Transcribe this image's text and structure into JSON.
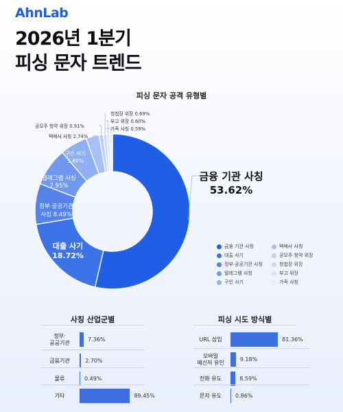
{
  "brand": "AhnLab",
  "title_line1": "2026년 1분기",
  "title_line2": "피싱 문자 트렌드",
  "colors": {
    "title": "#0d0d12",
    "accent": "#1e5fd8",
    "bar": "#3d6fe0"
  },
  "chart_data": [
    {
      "type": "pie",
      "title": "피싱 문자 공격 유형별",
      "categories": [
        "금융 기관 사칭",
        "대출 사기",
        "정부·공공기관 사칭",
        "텔레그램 사칭",
        "구인 사기",
        "택배사 사칭",
        "공모주 청약 위장",
        "청첩장 위장",
        "부고 위장",
        "가족 사칭"
      ],
      "values": [
        53.62,
        18.72,
        8.49,
        7.95,
        5.69,
        2.74,
        0.91,
        0.69,
        0.6,
        0.59
      ],
      "value_labels": [
        "53.62%",
        "18.72%",
        "8.49%",
        "7.95%",
        "5.69%",
        "2.74%",
        "0.91%",
        "0.69%",
        "0.60%",
        "0.59%"
      ],
      "colors": [
        "#1e5fe6",
        "#3d73e8",
        "#5583ea",
        "#7098ee",
        "#8fb0f3",
        "#a7c1f6",
        "#bccff8",
        "#cbd9fa",
        "#d8e3fb",
        "#e4ecfc"
      ],
      "legend_position": "bottom-right",
      "legend_order": [
        "금융 기관 사칭",
        "택배사 사칭",
        "대출 사기",
        "공모주 청약 위장",
        "정부·공공기관 사칭",
        "청첩장 위장",
        "텔레그램 사칭",
        "부고 위장",
        "구인 사기",
        "가족 사칭"
      ]
    },
    {
      "type": "bar",
      "title": "사칭 산업군별",
      "categories": [
        "정부·공공기관",
        "금융기관",
        "물류",
        "기타"
      ],
      "values": [
        7.36,
        2.7,
        0.49,
        89.45
      ],
      "value_labels": [
        "7.36%",
        "2.70%",
        "0.49%",
        "89.45%"
      ]
    },
    {
      "type": "bar",
      "title": "피싱 시도 방식별",
      "categories": [
        "URL 삽입",
        "모바일 메신저 유인",
        "전화 유도",
        "문자 유도"
      ],
      "values": [
        81.36,
        9.18,
        8.59,
        0.86
      ],
      "value_labels": [
        "81.36%",
        "9.18%",
        "8.59%",
        "0.86%"
      ]
    }
  ]
}
